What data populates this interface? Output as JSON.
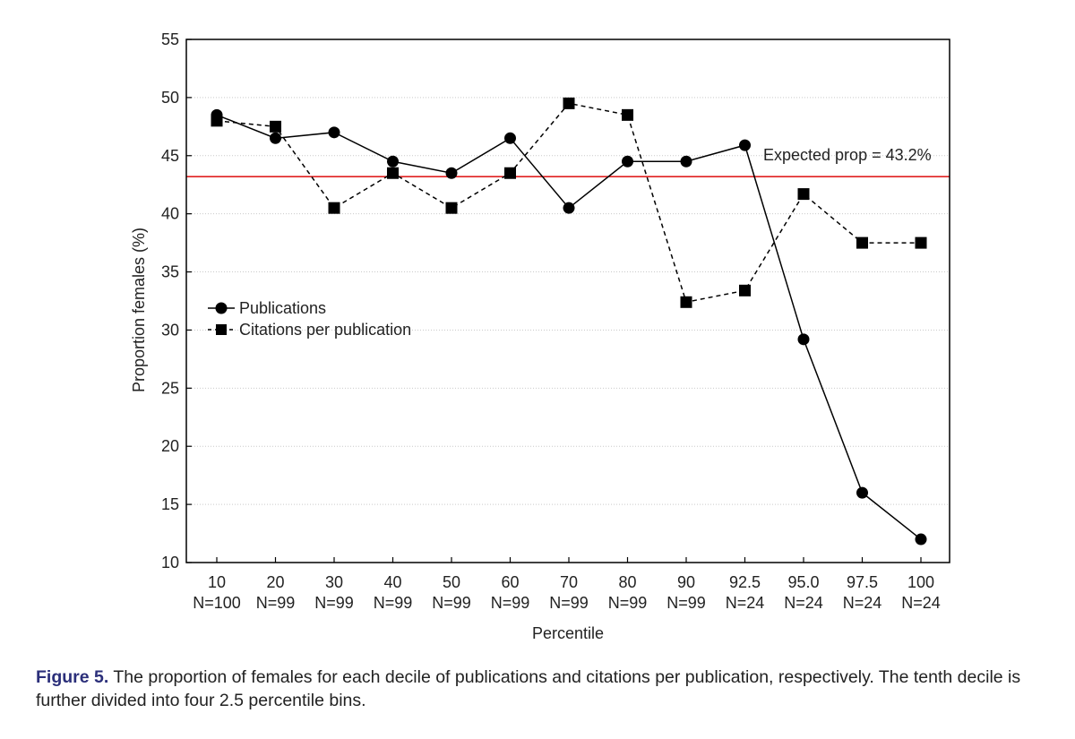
{
  "chart_data": {
    "type": "line",
    "xlabel": "Percentile",
    "ylabel": "Proportion females (%)",
    "ylim": [
      10,
      55
    ],
    "yticks": [
      "10",
      "15",
      "20",
      "25",
      "30",
      "35",
      "40",
      "45",
      "50",
      "55"
    ],
    "categories": [
      "10",
      "20",
      "30",
      "40",
      "50",
      "60",
      "70",
      "80",
      "90",
      "92.5",
      "95.0",
      "97.5",
      "100"
    ],
    "n_labels": [
      "N=100",
      "N=99",
      "N=99",
      "N=99",
      "N=99",
      "N=99",
      "N=99",
      "N=99",
      "N=99",
      "N=24",
      "N=24",
      "N=24",
      "N=24"
    ],
    "series": [
      {
        "name": "Publications",
        "marker": "circle",
        "line": "solid",
        "values": [
          48.5,
          46.5,
          47.0,
          44.5,
          43.5,
          46.5,
          40.5,
          44.5,
          44.5,
          45.9,
          29.2,
          16.0,
          12.0
        ]
      },
      {
        "name": "Citations per publication",
        "marker": "square",
        "line": "dashed",
        "values": [
          48.0,
          47.5,
          40.5,
          43.5,
          40.5,
          43.5,
          49.5,
          48.5,
          32.4,
          33.4,
          41.7,
          37.5,
          37.5
        ]
      }
    ],
    "reference_line": {
      "value": 43.2,
      "label": "Expected prop = 43.2%",
      "color": "#e02020"
    },
    "grid": true,
    "legend_position": "middle-left"
  },
  "caption": {
    "label": "Figure 5.",
    "text": " The proportion of females for each decile of publications and citations per publication, respectively. The tenth decile is further divided into four 2.5 percentile bins."
  }
}
